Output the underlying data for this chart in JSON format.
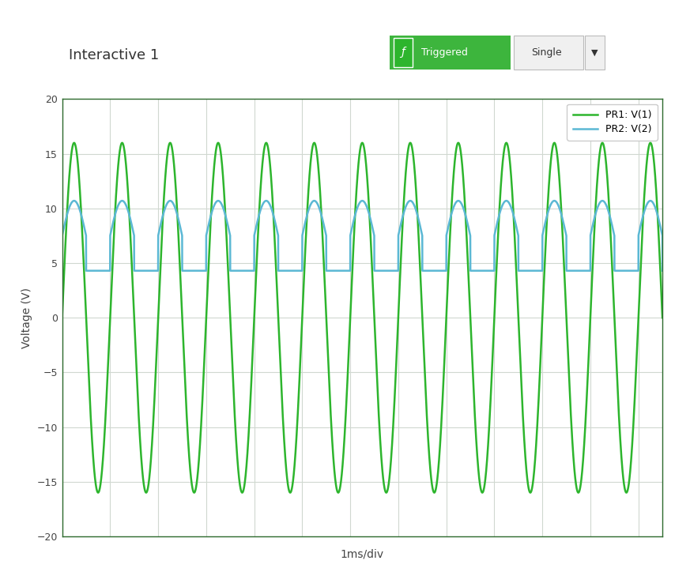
{
  "title": "Interactive 1",
  "xlabel": "1ms/div",
  "ylabel": "Voltage (V)",
  "ylim": [
    -20,
    20
  ],
  "yticks": [
    -20,
    -15,
    -10,
    -5,
    0,
    5,
    10,
    15,
    20
  ],
  "pr1_label": "PR1: V(1)",
  "pr2_label": "PR2: V(2)",
  "pr1_color": "#2db52d",
  "pr2_color": "#5bb8d4",
  "bg_color": "#ffffff",
  "plot_bg": "#ffffff",
  "header_bar_color": "#1a4a1a",
  "title_bar_color": "#ffffff",
  "grid_color": "#d0d8d0",
  "freq_cycles": 12,
  "pr1_amplitude": 16.0,
  "pr2_high": 10.7,
  "pr2_low": 4.3,
  "triggered_bg": "#3db53d",
  "triggered_text": "Triggered",
  "single_text": "Single",
  "title_fontsize": 13,
  "label_fontsize": 10,
  "total_time": 12.5,
  "n_points": 10000
}
